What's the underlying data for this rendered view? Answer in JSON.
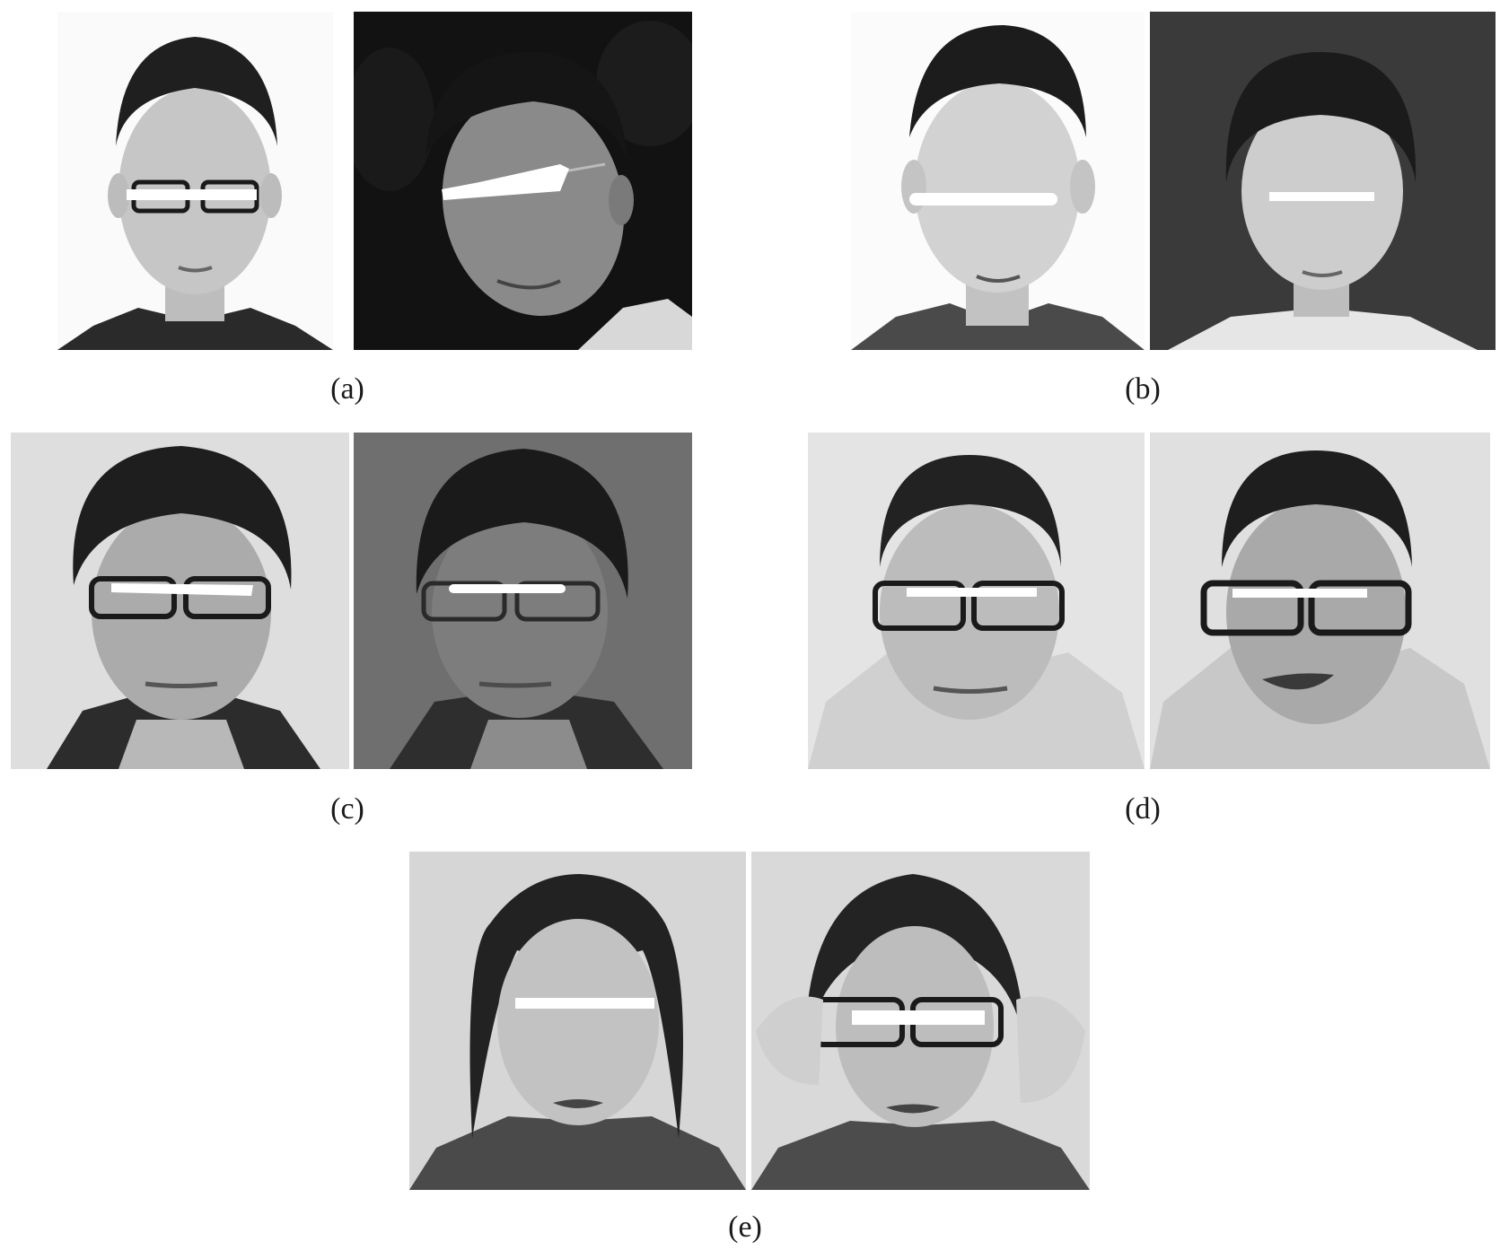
{
  "figure": {
    "captions": {
      "a": "(a)",
      "b": "(b)",
      "c": "(c)",
      "d": "(d)",
      "e": "(e)"
    }
  },
  "colors": {
    "background": "#ffffff",
    "caption_text": "#1a1a1a",
    "privacy_bar": "#ffffff"
  }
}
